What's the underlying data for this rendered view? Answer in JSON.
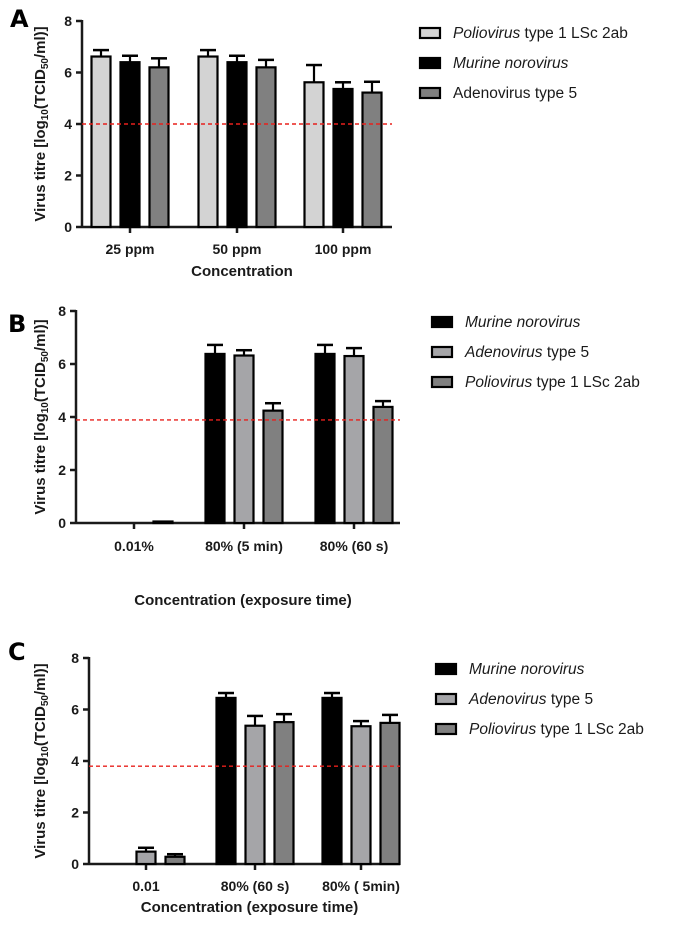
{
  "chart_data": [
    {
      "panel": "A",
      "type": "bar",
      "title": "",
      "xlabel": "Concentration",
      "ylabel": "Virus titre [log10(TCID50/ml)]",
      "ylim": [
        0,
        8
      ],
      "yticks": [
        "0",
        "2",
        "4",
        "6",
        "8"
      ],
      "categories": [
        "25 ppm",
        "50 ppm",
        "100 ppm"
      ],
      "threshold": 4.0,
      "legend_position": "top-right",
      "series": [
        {
          "name": "Poliovirus type 1 LSc 2ab",
          "italic": "Poliovirus",
          "rest": " type 1 LSc 2ab",
          "color": "#d3d3d3",
          "values": [
            6.62,
            6.62,
            5.62
          ],
          "errors": [
            0.25,
            0.25,
            0.67
          ]
        },
        {
          "name": "Murine norovirus",
          "italic": "Murine norovirus",
          "rest": "",
          "color": "#000000",
          "values": [
            6.4,
            6.4,
            5.36
          ],
          "errors": [
            0.25,
            0.25,
            0.26
          ]
        },
        {
          "name": "Adenovirus type 5",
          "italic": "",
          "rest": "Adenovirus type 5",
          "color": "#808080",
          "values": [
            6.2,
            6.2,
            5.22
          ],
          "errors": [
            0.35,
            0.29,
            0.42
          ]
        }
      ]
    },
    {
      "panel": "B",
      "type": "bar",
      "title": "",
      "xlabel": "Concentration (exposure time)",
      "ylabel": "Virus titre [log10(TCID50/ml)]",
      "ylim": [
        0,
        8
      ],
      "yticks": [
        "0",
        "2",
        "4",
        "6",
        "8"
      ],
      "categories": [
        "0.01%",
        "80% (5 min)",
        "80% (60 s)"
      ],
      "threshold": 3.89,
      "legend_position": "top-right",
      "series": [
        {
          "name": "Murine norovirus",
          "italic": "Murine norovirus",
          "rest": "",
          "color": "#000000",
          "values": [
            0,
            6.38,
            6.38
          ],
          "errors": [
            0,
            0.34,
            0.34
          ]
        },
        {
          "name": "Adenovirus type 5",
          "italic": "Adenovirus",
          "rest": " type 5",
          "color": "#a5a5a8",
          "values": [
            0,
            6.32,
            6.3
          ],
          "errors": [
            0,
            0.2,
            0.3
          ]
        },
        {
          "name": "Poliovirus type 1 LSc 2ab",
          "italic": "Poliovirus",
          "rest": " type 1 LSc 2ab",
          "color": "#808080",
          "values": [
            0.05,
            4.24,
            4.38
          ],
          "errors": [
            0,
            0.28,
            0.22
          ]
        }
      ]
    },
    {
      "panel": "C",
      "type": "bar",
      "title": "",
      "xlabel": "Concentration (exposure time)",
      "ylabel": "Virus titre [log10(TCID50/ml)]",
      "ylim": [
        0,
        8
      ],
      "yticks": [
        "0",
        "2",
        "4",
        "6",
        "8"
      ],
      "categories": [
        "0.01",
        "80% (60 s)",
        "80% ( 5min)"
      ],
      "threshold": 3.8,
      "legend_position": "top-right",
      "series": [
        {
          "name": "Murine norovirus",
          "italic": "Murine norovirus",
          "rest": "",
          "color": "#000000",
          "values": [
            0,
            6.45,
            6.45
          ],
          "errors": [
            0,
            0.19,
            0.19
          ]
        },
        {
          "name": "Adenovirus type 5",
          "italic": "Adenovirus",
          "rest": " type 5",
          "color": "#a5a5a8",
          "values": [
            0.48,
            5.37,
            5.35
          ],
          "errors": [
            0.15,
            0.38,
            0.2
          ]
        },
        {
          "name": "Poliovirus type 1 LSc 2ab",
          "italic": "Poliovirus",
          "rest": " type 1 LSc 2ab",
          "color": "#808080",
          "values": [
            0.28,
            5.51,
            5.48
          ],
          "errors": [
            0.1,
            0.31,
            0.31
          ]
        }
      ]
    }
  ],
  "colors": {
    "threshold_line": "#e8201c",
    "axis": "#1a1a1a"
  }
}
